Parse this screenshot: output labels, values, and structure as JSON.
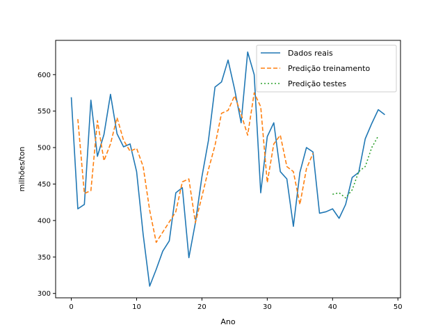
{
  "chart_data": {
    "type": "line",
    "title": "",
    "xlabel": "Ano",
    "ylabel": "milhões/ton",
    "xlim": [
      -2.4,
      50.4
    ],
    "ylim": [
      294,
      647
    ],
    "xticks": [
      0,
      10,
      20,
      30,
      40,
      50
    ],
    "yticks": [
      300,
      350,
      400,
      450,
      500,
      550,
      600
    ],
    "legend_position": "top-right",
    "series": [
      {
        "name": "Dados reais",
        "color": "#1f77b4",
        "style": "solid",
        "x": [
          0,
          1,
          2,
          3,
          4,
          5,
          6,
          7,
          8,
          9,
          10,
          11,
          12,
          13,
          14,
          15,
          16,
          17,
          18,
          19,
          20,
          21,
          22,
          23,
          24,
          25,
          26,
          27,
          28,
          29,
          30,
          31,
          32,
          33,
          34,
          35,
          36,
          37,
          38,
          39,
          40,
          41,
          42,
          43,
          44,
          45,
          46,
          47,
          48
        ],
        "y": [
          569,
          416,
          422,
          565,
          488,
          518,
          573,
          519,
          501,
          505,
          467,
          381,
          310,
          333,
          358,
          372,
          438,
          445,
          349,
          397,
          460,
          510,
          583,
          590,
          620,
          580,
          534,
          631,
          600,
          438,
          515,
          534,
          467,
          457,
          392,
          466,
          500,
          494,
          410,
          412,
          416,
          403,
          422,
          459,
          466,
          512,
          533,
          552,
          545
        ]
      },
      {
        "name": "Predição treinamento",
        "color": "#ff7f0e",
        "style": "dashed",
        "x": [
          1,
          2,
          3,
          4,
          5,
          6,
          7,
          8,
          9,
          10,
          11,
          12,
          13,
          14,
          15,
          16,
          17,
          18,
          19,
          20,
          21,
          22,
          23,
          24,
          25,
          26,
          27,
          28,
          29,
          30,
          31,
          32,
          33,
          34,
          35,
          36,
          37
        ],
        "y": [
          539,
          437,
          441,
          537,
          482,
          505,
          541,
          510,
          495,
          499,
          474,
          414,
          370,
          384,
          398,
          412,
          453,
          457,
          397,
          433,
          470,
          503,
          547,
          551,
          571,
          546,
          517,
          575,
          556,
          452,
          505,
          517,
          474,
          467,
          422,
          471,
          492
        ]
      },
      {
        "name": "Predição testes",
        "color": "#2ca02c",
        "style": "dotted",
        "x": [
          40,
          41,
          42,
          43,
          44,
          45,
          46,
          47
        ],
        "y": [
          436,
          438,
          431,
          442,
          467,
          474,
          500,
          516
        ]
      }
    ]
  }
}
